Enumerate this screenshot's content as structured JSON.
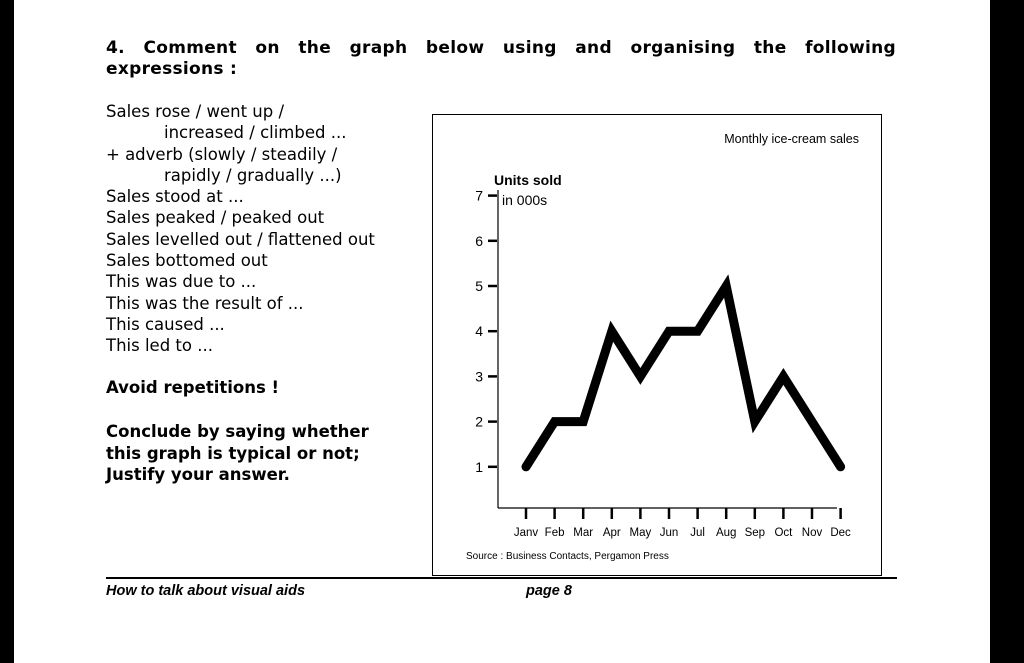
{
  "question": {
    "line1": "4. Comment on the graph below using and organising the following",
    "line2": "expressions :"
  },
  "expressions": [
    "Sales rose / went up /",
    "increased / climbed ...",
    "+ adverb (slowly / steadily /",
    "rapidly / gradually ...)",
    "Sales stood at ...",
    "Sales peaked / peaked out",
    "Sales levelled out / flattened out",
    "Sales bottomed out",
    "This was due to ...",
    "This was the result of ...",
    "This caused ...",
    "This led to ..."
  ],
  "avoid": "Avoid repetitions !",
  "conclude": [
    "Conclude by saying whether",
    "this graph is typical or not;",
    "Justify your answer."
  ],
  "chart_data": {
    "type": "line",
    "title": "Monthly ice-cream sales",
    "ylabel": [
      "Units sold",
      "in 000s"
    ],
    "categories": [
      "Janv",
      "Feb",
      "Mar",
      "Apr",
      "May",
      "Jun",
      "Jul",
      "Aug",
      "Sep",
      "Oct",
      "Nov",
      "Dec"
    ],
    "values": [
      1,
      2,
      2,
      4,
      3,
      4,
      4,
      5,
      2,
      3,
      2,
      1
    ],
    "yticks": [
      1,
      2,
      3,
      4,
      5,
      6,
      7
    ],
    "ylim": [
      0,
      7
    ],
    "grid": false,
    "source": "Source :  Business Contacts, Pergamon Press",
    "line_color": "#000000"
  },
  "footer": {
    "left": "How to talk about visual aids",
    "right": "page 8"
  }
}
